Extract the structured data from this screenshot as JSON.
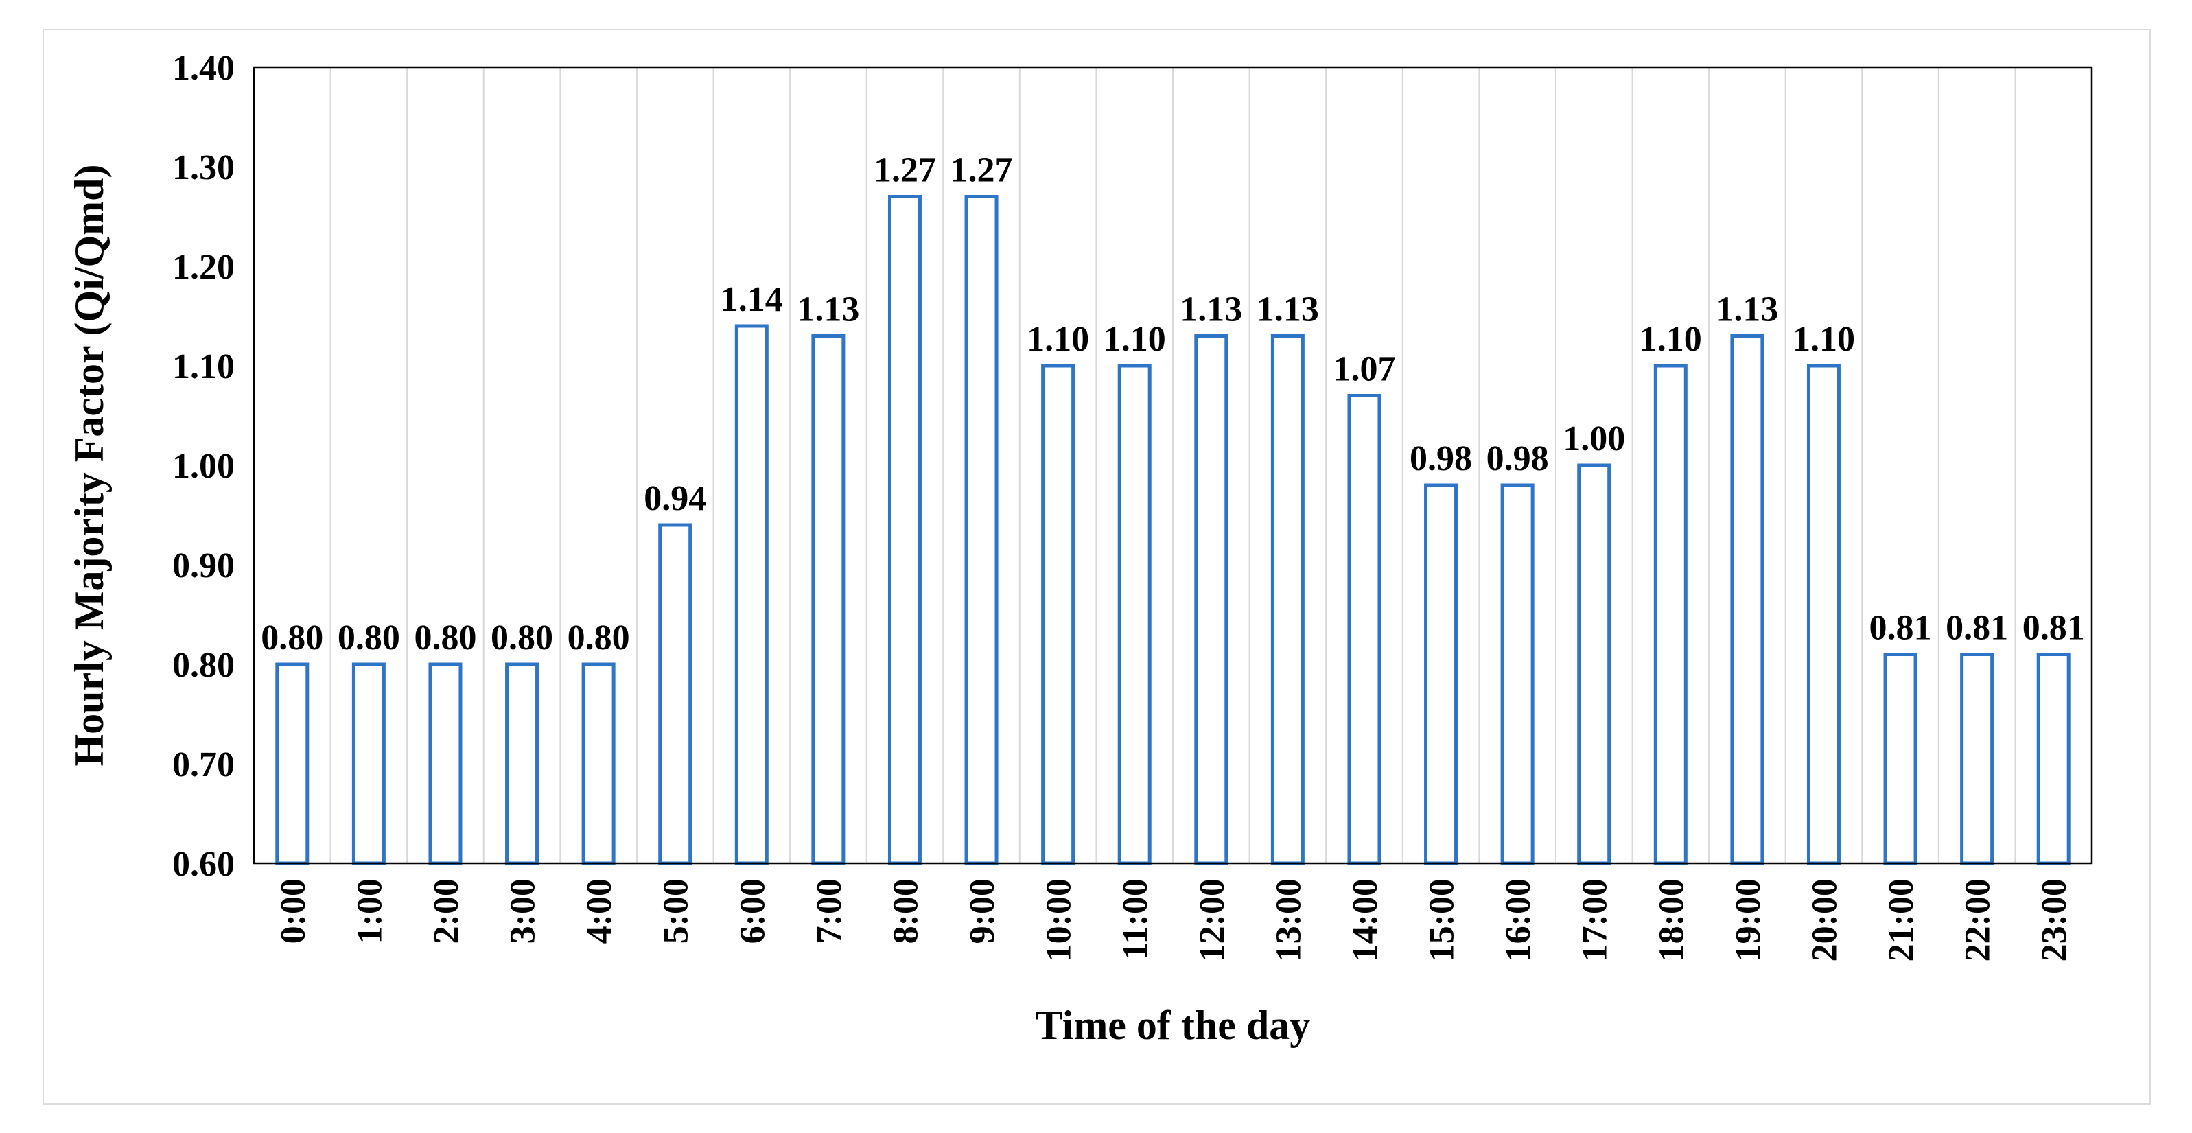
{
  "chart_data": {
    "type": "bar",
    "title": "",
    "xlabel": "Time of the day",
    "ylabel": "Hourly Majority Factor (Qi/Qmd)",
    "ylim": [
      0.6,
      1.4
    ],
    "yticks": [
      "0.60",
      "0.70",
      "0.80",
      "0.90",
      "1.00",
      "1.10",
      "1.20",
      "1.30",
      "1.40"
    ],
    "grid": "vertical gridlines",
    "legend": "none",
    "bar_style": "hollow bars with blue outline",
    "colors": {
      "bar_outline": "#2E75C8",
      "gridline": "#d9d9d9",
      "axis": "#000000"
    },
    "categories": [
      "0:00",
      "1:00",
      "2:00",
      "3:00",
      "4:00",
      "5:00",
      "6:00",
      "7:00",
      "8:00",
      "9:00",
      "10:00",
      "11:00",
      "12:00",
      "13:00",
      "14:00",
      "15:00",
      "16:00",
      "17:00",
      "18:00",
      "19:00",
      "20:00",
      "21:00",
      "22:00",
      "23:00"
    ],
    "values": [
      0.8,
      0.8,
      0.8,
      0.8,
      0.8,
      0.94,
      1.14,
      1.13,
      1.27,
      1.27,
      1.1,
      1.1,
      1.13,
      1.13,
      1.07,
      0.98,
      0.98,
      1.0,
      1.1,
      1.13,
      1.1,
      0.81,
      0.81,
      0.81
    ],
    "data_labels": [
      "0.80",
      "0.80",
      "0.80",
      "0.80",
      "0.80",
      "0.94",
      "1.14",
      "1.13",
      "1.27",
      "1.27",
      "1.10",
      "1.10",
      "1.13",
      "1.13",
      "1.07",
      "0.98",
      "0.98",
      "1.00",
      "1.10",
      "1.13",
      "1.10",
      "0.81",
      "0.81",
      "0.81"
    ]
  }
}
